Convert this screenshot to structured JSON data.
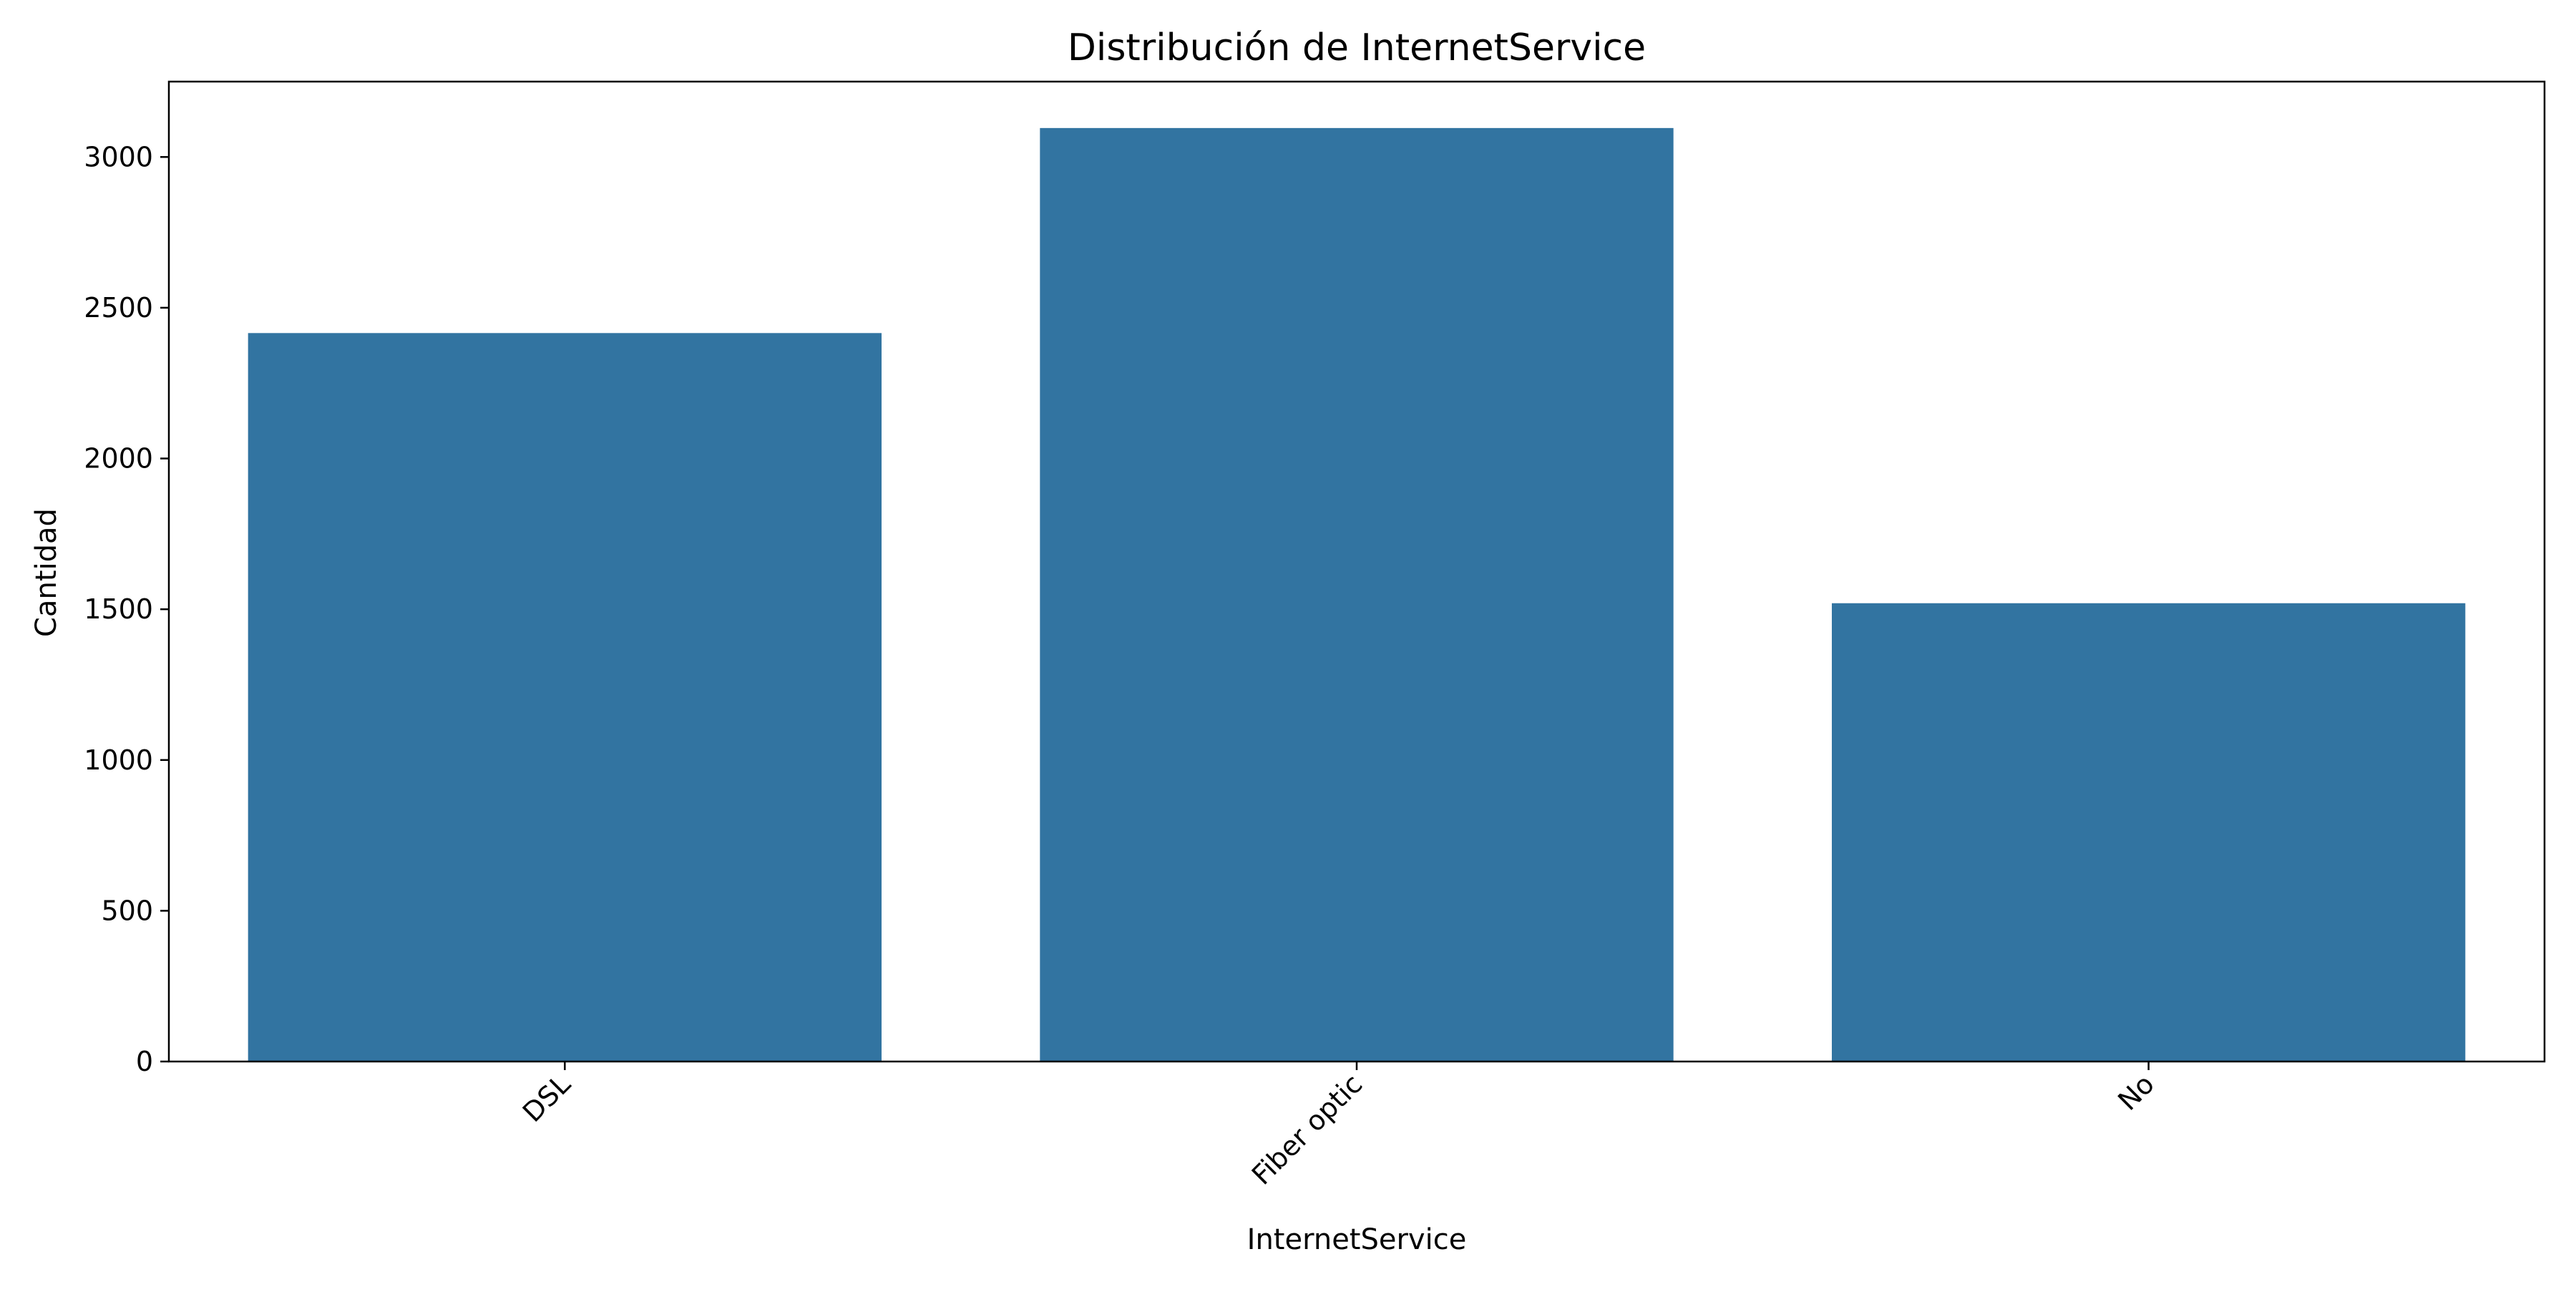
{
  "chart_data": {
    "type": "bar",
    "title": "Distribución de InternetService",
    "xlabel": "InternetService",
    "ylabel": "Cantidad",
    "categories": [
      "DSL",
      "Fiber optic",
      "No"
    ],
    "values": [
      2416,
      3096,
      1520
    ],
    "ylim": [
      0,
      3250
    ],
    "yticks": [
      0,
      500,
      1000,
      1500,
      2000,
      2500,
      3000
    ],
    "bar_color": "#3274a1",
    "grid": false,
    "legend": "none",
    "x_tick_rotation_deg": 45
  }
}
